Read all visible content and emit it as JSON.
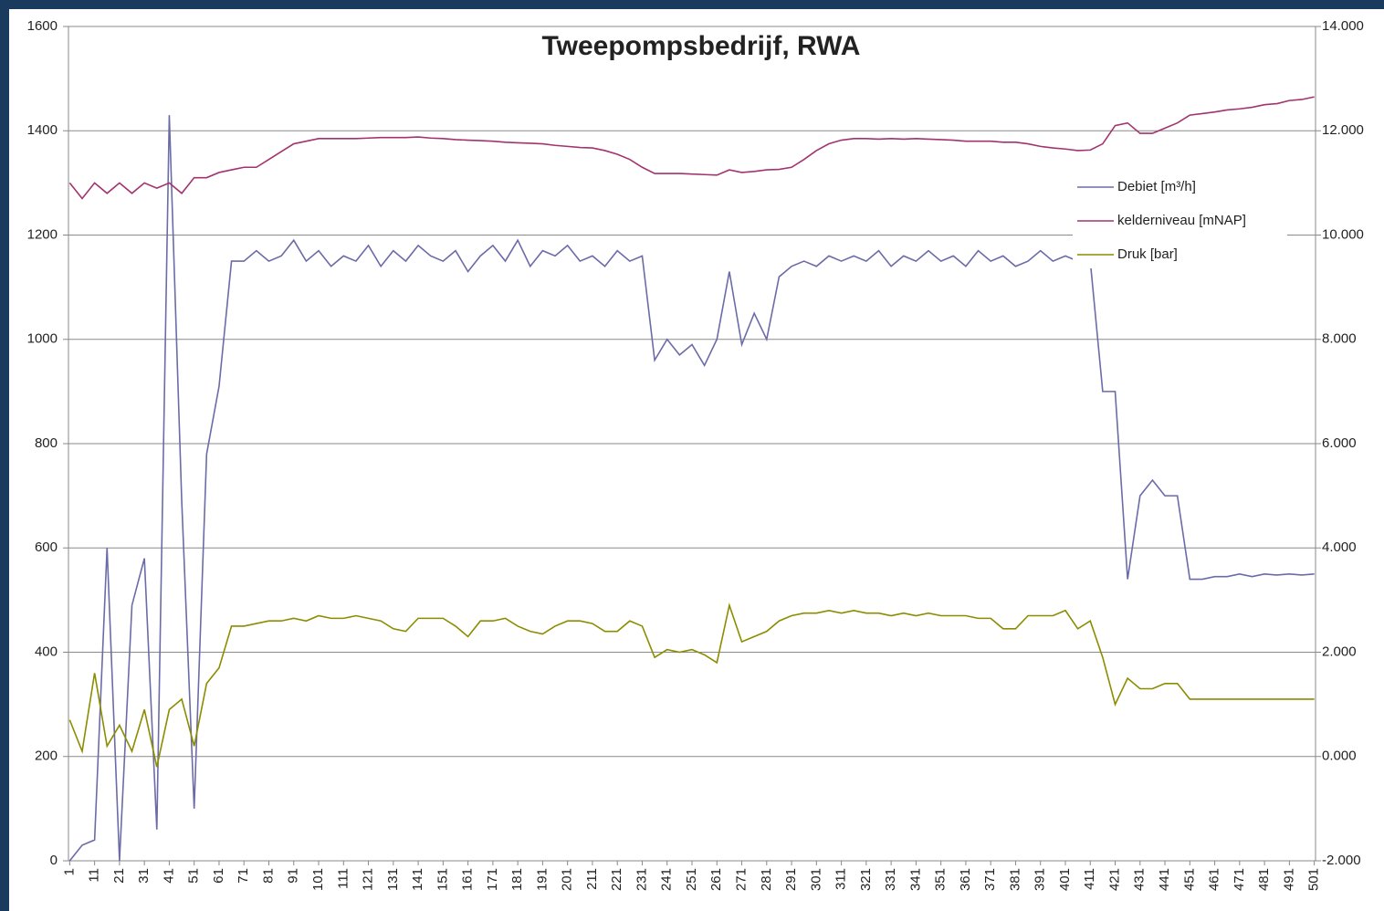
{
  "chart_data": {
    "type": "line",
    "title": "Tweepompsbedrijf, RWA",
    "x": [
      1,
      6,
      11,
      16,
      21,
      26,
      31,
      36,
      41,
      46,
      51,
      56,
      61,
      66,
      71,
      76,
      81,
      86,
      91,
      96,
      101,
      106,
      111,
      116,
      121,
      126,
      131,
      136,
      141,
      146,
      151,
      156,
      161,
      166,
      171,
      176,
      181,
      186,
      191,
      196,
      201,
      206,
      211,
      216,
      221,
      226,
      231,
      236,
      241,
      246,
      251,
      256,
      261,
      266,
      271,
      276,
      281,
      286,
      291,
      296,
      301,
      306,
      311,
      316,
      321,
      326,
      331,
      336,
      341,
      346,
      351,
      356,
      361,
      366,
      371,
      376,
      381,
      386,
      391,
      396,
      401,
      406,
      411,
      416,
      421,
      426,
      431,
      436,
      441,
      446,
      451,
      456,
      461,
      466,
      471,
      476,
      481,
      486,
      491,
      496,
      501
    ],
    "xlim": [
      1,
      501
    ],
    "xticks": [
      1,
      11,
      21,
      31,
      41,
      51,
      61,
      71,
      81,
      91,
      101,
      111,
      121,
      131,
      141,
      151,
      161,
      171,
      181,
      191,
      201,
      211,
      221,
      231,
      241,
      251,
      261,
      271,
      281,
      291,
      301,
      311,
      321,
      331,
      341,
      351,
      361,
      371,
      381,
      391,
      401,
      411,
      421,
      431,
      441,
      451,
      461,
      471,
      481,
      491,
      501
    ],
    "ylim": [
      0,
      1600
    ],
    "yticks": [
      0,
      200,
      400,
      600,
      800,
      1000,
      1200,
      1400,
      1600
    ],
    "y2lim": [
      -2,
      14
    ],
    "y2ticks": [
      {
        "value": -2,
        "label": "-2.000"
      },
      {
        "value": 0,
        "label": "0.000"
      },
      {
        "value": 2,
        "label": "2.000"
      },
      {
        "value": 4,
        "label": "4.000"
      },
      {
        "value": 6,
        "label": "6.000"
      },
      {
        "value": 8,
        "label": "8.000"
      },
      {
        "value": 10,
        "label": "10.000"
      },
      {
        "value": 12,
        "label": "12.000"
      },
      {
        "value": 14,
        "label": "14.000"
      }
    ],
    "grid": true,
    "legend": "right",
    "series": [
      {
        "name": "Debiet [m³/h]",
        "color": "#6b6ba8",
        "axis": "y",
        "values": [
          0,
          30,
          40,
          600,
          0,
          490,
          580,
          60,
          1430,
          690,
          100,
          780,
          910,
          1150,
          1150,
          1170,
          1150,
          1160,
          1190,
          1150,
          1170,
          1140,
          1160,
          1150,
          1180,
          1140,
          1170,
          1150,
          1180,
          1160,
          1150,
          1170,
          1130,
          1160,
          1180,
          1150,
          1190,
          1140,
          1170,
          1160,
          1180,
          1150,
          1160,
          1140,
          1170,
          1150,
          1160,
          960,
          1000,
          970,
          990,
          950,
          1000,
          1130,
          990,
          1050,
          1000,
          1120,
          1140,
          1150,
          1140,
          1160,
          1150,
          1160,
          1150,
          1170,
          1140,
          1160,
          1150,
          1170,
          1150,
          1160,
          1140,
          1170,
          1150,
          1160,
          1140,
          1150,
          1170,
          1150,
          1160,
          1150,
          1150,
          900,
          900,
          540,
          700,
          730,
          700,
          700,
          540,
          540,
          545,
          545,
          550,
          545,
          550,
          548,
          550,
          548,
          550
        ]
      },
      {
        "name": "kelderniveau [mNAP]",
        "color": "#a3336e",
        "axis": "y2",
        "values": [
          11.0,
          10.7,
          11.0,
          10.8,
          11.0,
          10.8,
          11.0,
          10.9,
          11.0,
          10.8,
          11.1,
          11.1,
          11.2,
          11.25,
          11.3,
          11.3,
          11.45,
          11.6,
          11.75,
          11.8,
          11.85,
          11.85,
          11.85,
          11.85,
          11.86,
          11.87,
          11.87,
          11.87,
          11.88,
          11.86,
          11.85,
          11.83,
          11.82,
          11.81,
          11.8,
          11.78,
          11.77,
          11.76,
          11.75,
          11.72,
          11.7,
          11.68,
          11.67,
          11.62,
          11.55,
          11.45,
          11.3,
          11.18,
          11.18,
          11.18,
          11.17,
          11.16,
          11.15,
          11.25,
          11.2,
          11.22,
          11.25,
          11.26,
          11.3,
          11.45,
          11.62,
          11.75,
          11.82,
          11.85,
          11.85,
          11.84,
          11.85,
          11.84,
          11.85,
          11.84,
          11.83,
          11.82,
          11.8,
          11.8,
          11.8,
          11.78,
          11.78,
          11.75,
          11.7,
          11.67,
          11.65,
          11.62,
          11.63,
          11.75,
          12.1,
          12.15,
          11.95,
          11.95,
          12.05,
          12.15,
          12.3,
          12.33,
          12.36,
          12.4,
          12.42,
          12.45,
          12.5,
          12.52,
          12.58,
          12.6,
          12.65
        ]
      },
      {
        "name": "Druk [bar]",
        "color": "#8c8c00",
        "axis": "y2",
        "values": [
          0.7,
          0.1,
          1.6,
          0.2,
          0.6,
          0.1,
          0.9,
          -0.2,
          0.9,
          1.1,
          0.2,
          1.4,
          1.7,
          2.5,
          2.5,
          2.55,
          2.6,
          2.6,
          2.65,
          2.6,
          2.7,
          2.65,
          2.65,
          2.7,
          2.65,
          2.6,
          2.45,
          2.4,
          2.65,
          2.65,
          2.65,
          2.5,
          2.3,
          2.6,
          2.6,
          2.65,
          2.5,
          2.4,
          2.35,
          2.5,
          2.6,
          2.6,
          2.55,
          2.4,
          2.4,
          2.6,
          2.5,
          1.9,
          2.05,
          2.0,
          2.05,
          1.95,
          1.8,
          2.9,
          2.2,
          2.3,
          2.4,
          2.6,
          2.7,
          2.75,
          2.75,
          2.8,
          2.75,
          2.8,
          2.75,
          2.75,
          2.7,
          2.75,
          2.7,
          2.75,
          2.7,
          2.7,
          2.7,
          2.65,
          2.65,
          2.45,
          2.45,
          2.7,
          2.7,
          2.7,
          2.8,
          2.45,
          2.6,
          1.9,
          1.0,
          1.5,
          1.3,
          1.3,
          1.4,
          1.4,
          1.1,
          1.1,
          1.1,
          1.1,
          1.1,
          1.1,
          1.1,
          1.1,
          1.1,
          1.1,
          1.1
        ]
      }
    ]
  }
}
